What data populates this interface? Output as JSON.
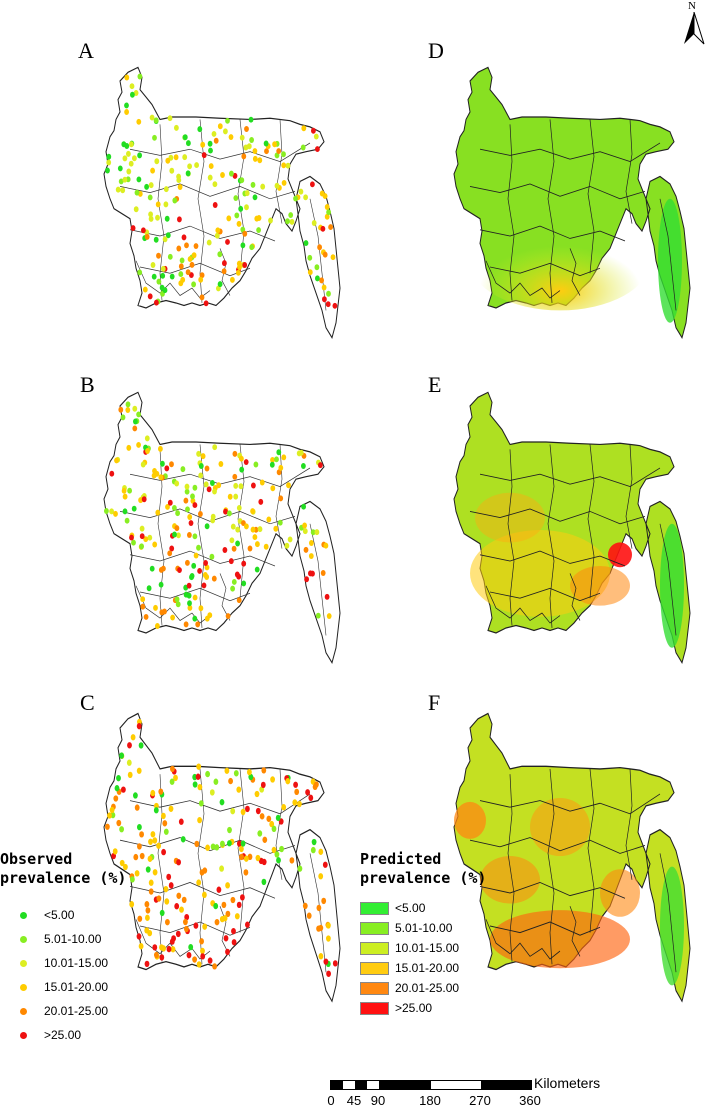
{
  "panels": {
    "observed": [
      {
        "letter": "A"
      },
      {
        "letter": "B"
      },
      {
        "letter": "C"
      }
    ],
    "predicted": [
      {
        "letter": "D"
      },
      {
        "letter": "E"
      },
      {
        "letter": "F"
      }
    ]
  },
  "north_arrow": {
    "label": "N",
    "icon": "north-arrow-icon"
  },
  "legend_observed": {
    "title_line1": "Observed",
    "title_line2": "prevalence (%)",
    "items": [
      {
        "label": "<5.00",
        "color": "#22dd22"
      },
      {
        "label": "5.01-10.00",
        "color": "#88ee22"
      },
      {
        "label": "10.01-15.00",
        "color": "#ddee22"
      },
      {
        "label": "15.01-20.00",
        "color": "#ffcc00"
      },
      {
        "label": "20.01-25.00",
        "color": "#ff8800"
      },
      {
        "label": ">25.00",
        "color": "#ee1111"
      }
    ]
  },
  "legend_predicted": {
    "title_line1": "Predicted",
    "title_line2": "prevalence (%)",
    "items": [
      {
        "label": "<5.00",
        "color": "#33ee33"
      },
      {
        "label": "5.01-10.00",
        "color": "#88ee22"
      },
      {
        "label": "10.01-15.00",
        "color": "#ccee22"
      },
      {
        "label": "15.01-20.00",
        "color": "#ffcc11"
      },
      {
        "label": "20.01-25.00",
        "color": "#ff8811"
      },
      {
        "label": ">25.00",
        "color": "#ff1111"
      }
    ]
  },
  "scale_bar": {
    "unit": "Kilometers",
    "ticks": [
      "0",
      "45",
      "90",
      "180",
      "270",
      "360"
    ]
  }
}
